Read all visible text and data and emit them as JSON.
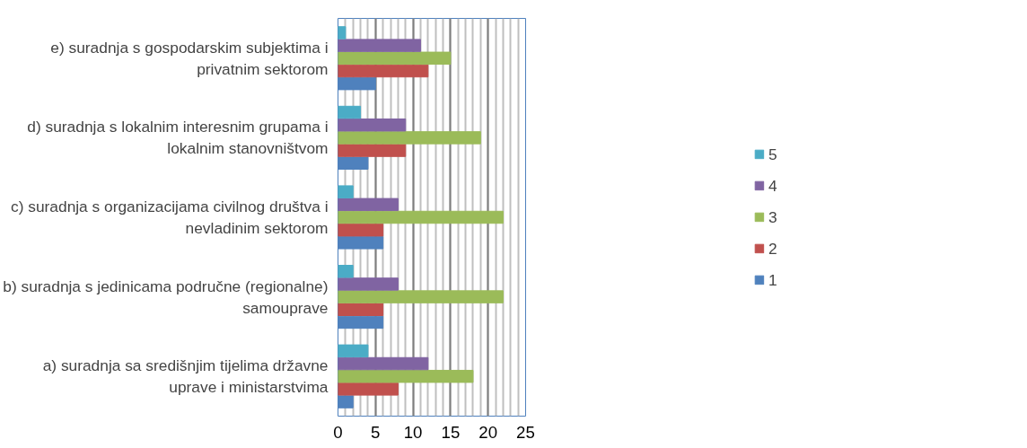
{
  "chart_data": {
    "type": "bar",
    "orientation": "horizontal",
    "categories": [
      "e) suradnja s gospodarskim subjektima i privatnim sektorom",
      "d) suradnja s lokalnim interesnim grupama i lokalnim stanovništvom",
      "c) suradnja s organizacijama civilnog društva i nevladinim sektorom",
      "b) suradnja s jedinicama područne (regionalne) samouprave",
      "a) suradnja sa središnjim tijelima državne uprave i ministarstvima"
    ],
    "series": [
      {
        "name": "1",
        "color": "#4f81bd",
        "values": [
          5,
          4,
          6,
          6,
          2
        ]
      },
      {
        "name": "2",
        "color": "#c0504d",
        "values": [
          12,
          9,
          6,
          6,
          8
        ]
      },
      {
        "name": "3",
        "color": "#9bbb59",
        "values": [
          15,
          19,
          22,
          22,
          18
        ]
      },
      {
        "name": "4",
        "color": "#8064a2",
        "values": [
          11,
          9,
          8,
          8,
          12
        ]
      },
      {
        "name": "5",
        "color": "#4bacc6",
        "values": [
          1,
          3,
          2,
          2,
          4
        ]
      }
    ],
    "xlim": [
      0,
      25
    ],
    "xticks": [
      0,
      5,
      10,
      15,
      20,
      25
    ],
    "grid": "x",
    "legend": "right"
  }
}
